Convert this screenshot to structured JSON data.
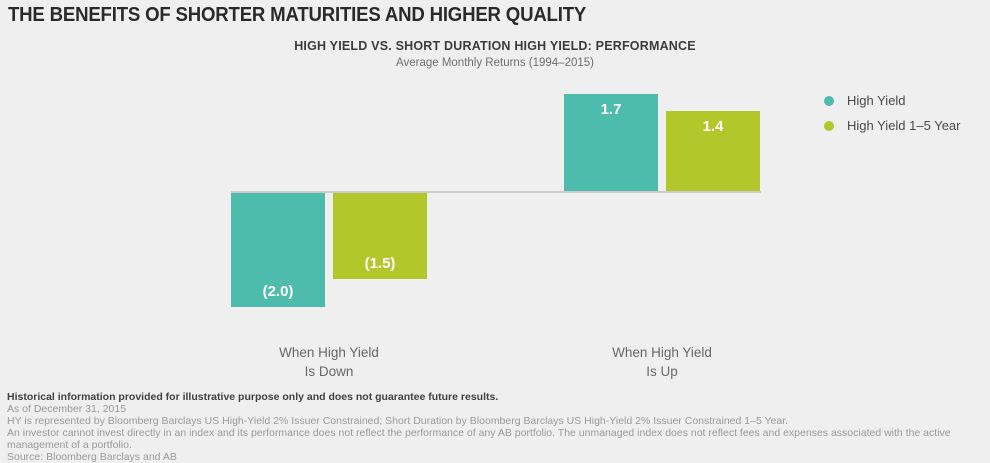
{
  "header": {
    "title": "THE BENEFITS OF SHORTER MATURITIES AND HIGHER QUALITY"
  },
  "chart_data": {
    "type": "bar",
    "title": "HIGH YIELD VS. SHORT DURATION HIGH YIELD: PERFORMANCE",
    "subtitle": "Average Monthly Returns (1994–2015)",
    "categories": [
      "When High Yield\nIs Down",
      "When High Yield\nIs Up"
    ],
    "series": [
      {
        "name": "High Yield",
        "color": "#4DBCAC",
        "values": [
          -2.0,
          1.7
        ],
        "labels": [
          "(2.0)",
          "1.7"
        ]
      },
      {
        "name": "High Yield 1–5 Year",
        "color": "#B2C72A",
        "values": [
          -1.5,
          1.4
        ],
        "labels": [
          "(1.5)",
          "1.4"
        ]
      }
    ],
    "ylim": [
      -2.2,
      1.9
    ],
    "grid": false,
    "legend_position": "right",
    "background": "#EFEFEF",
    "zero_line_color": "#CBCBCB"
  },
  "footnotes": {
    "disclaimer_bold": "Historical information provided for illustrative purpose only and does not guarantee future results.",
    "as_of": "As of December 31, 2015",
    "index_note": "HY is represented by Bloomberg Barclays US High-Yield 2% Issuer Constrained; Short Duration by Bloomberg Barclays US High-Yield 2% Issuer Constrained 1–5 Year.",
    "investor_note": "An investor cannot invest directly in an index and its performance does not reflect the performance of any AB portfolio. The unmanaged index does not reflect fees and expenses associated with the active management of a portfolio.",
    "source": "Source: Bloomberg Barclays and AB"
  }
}
